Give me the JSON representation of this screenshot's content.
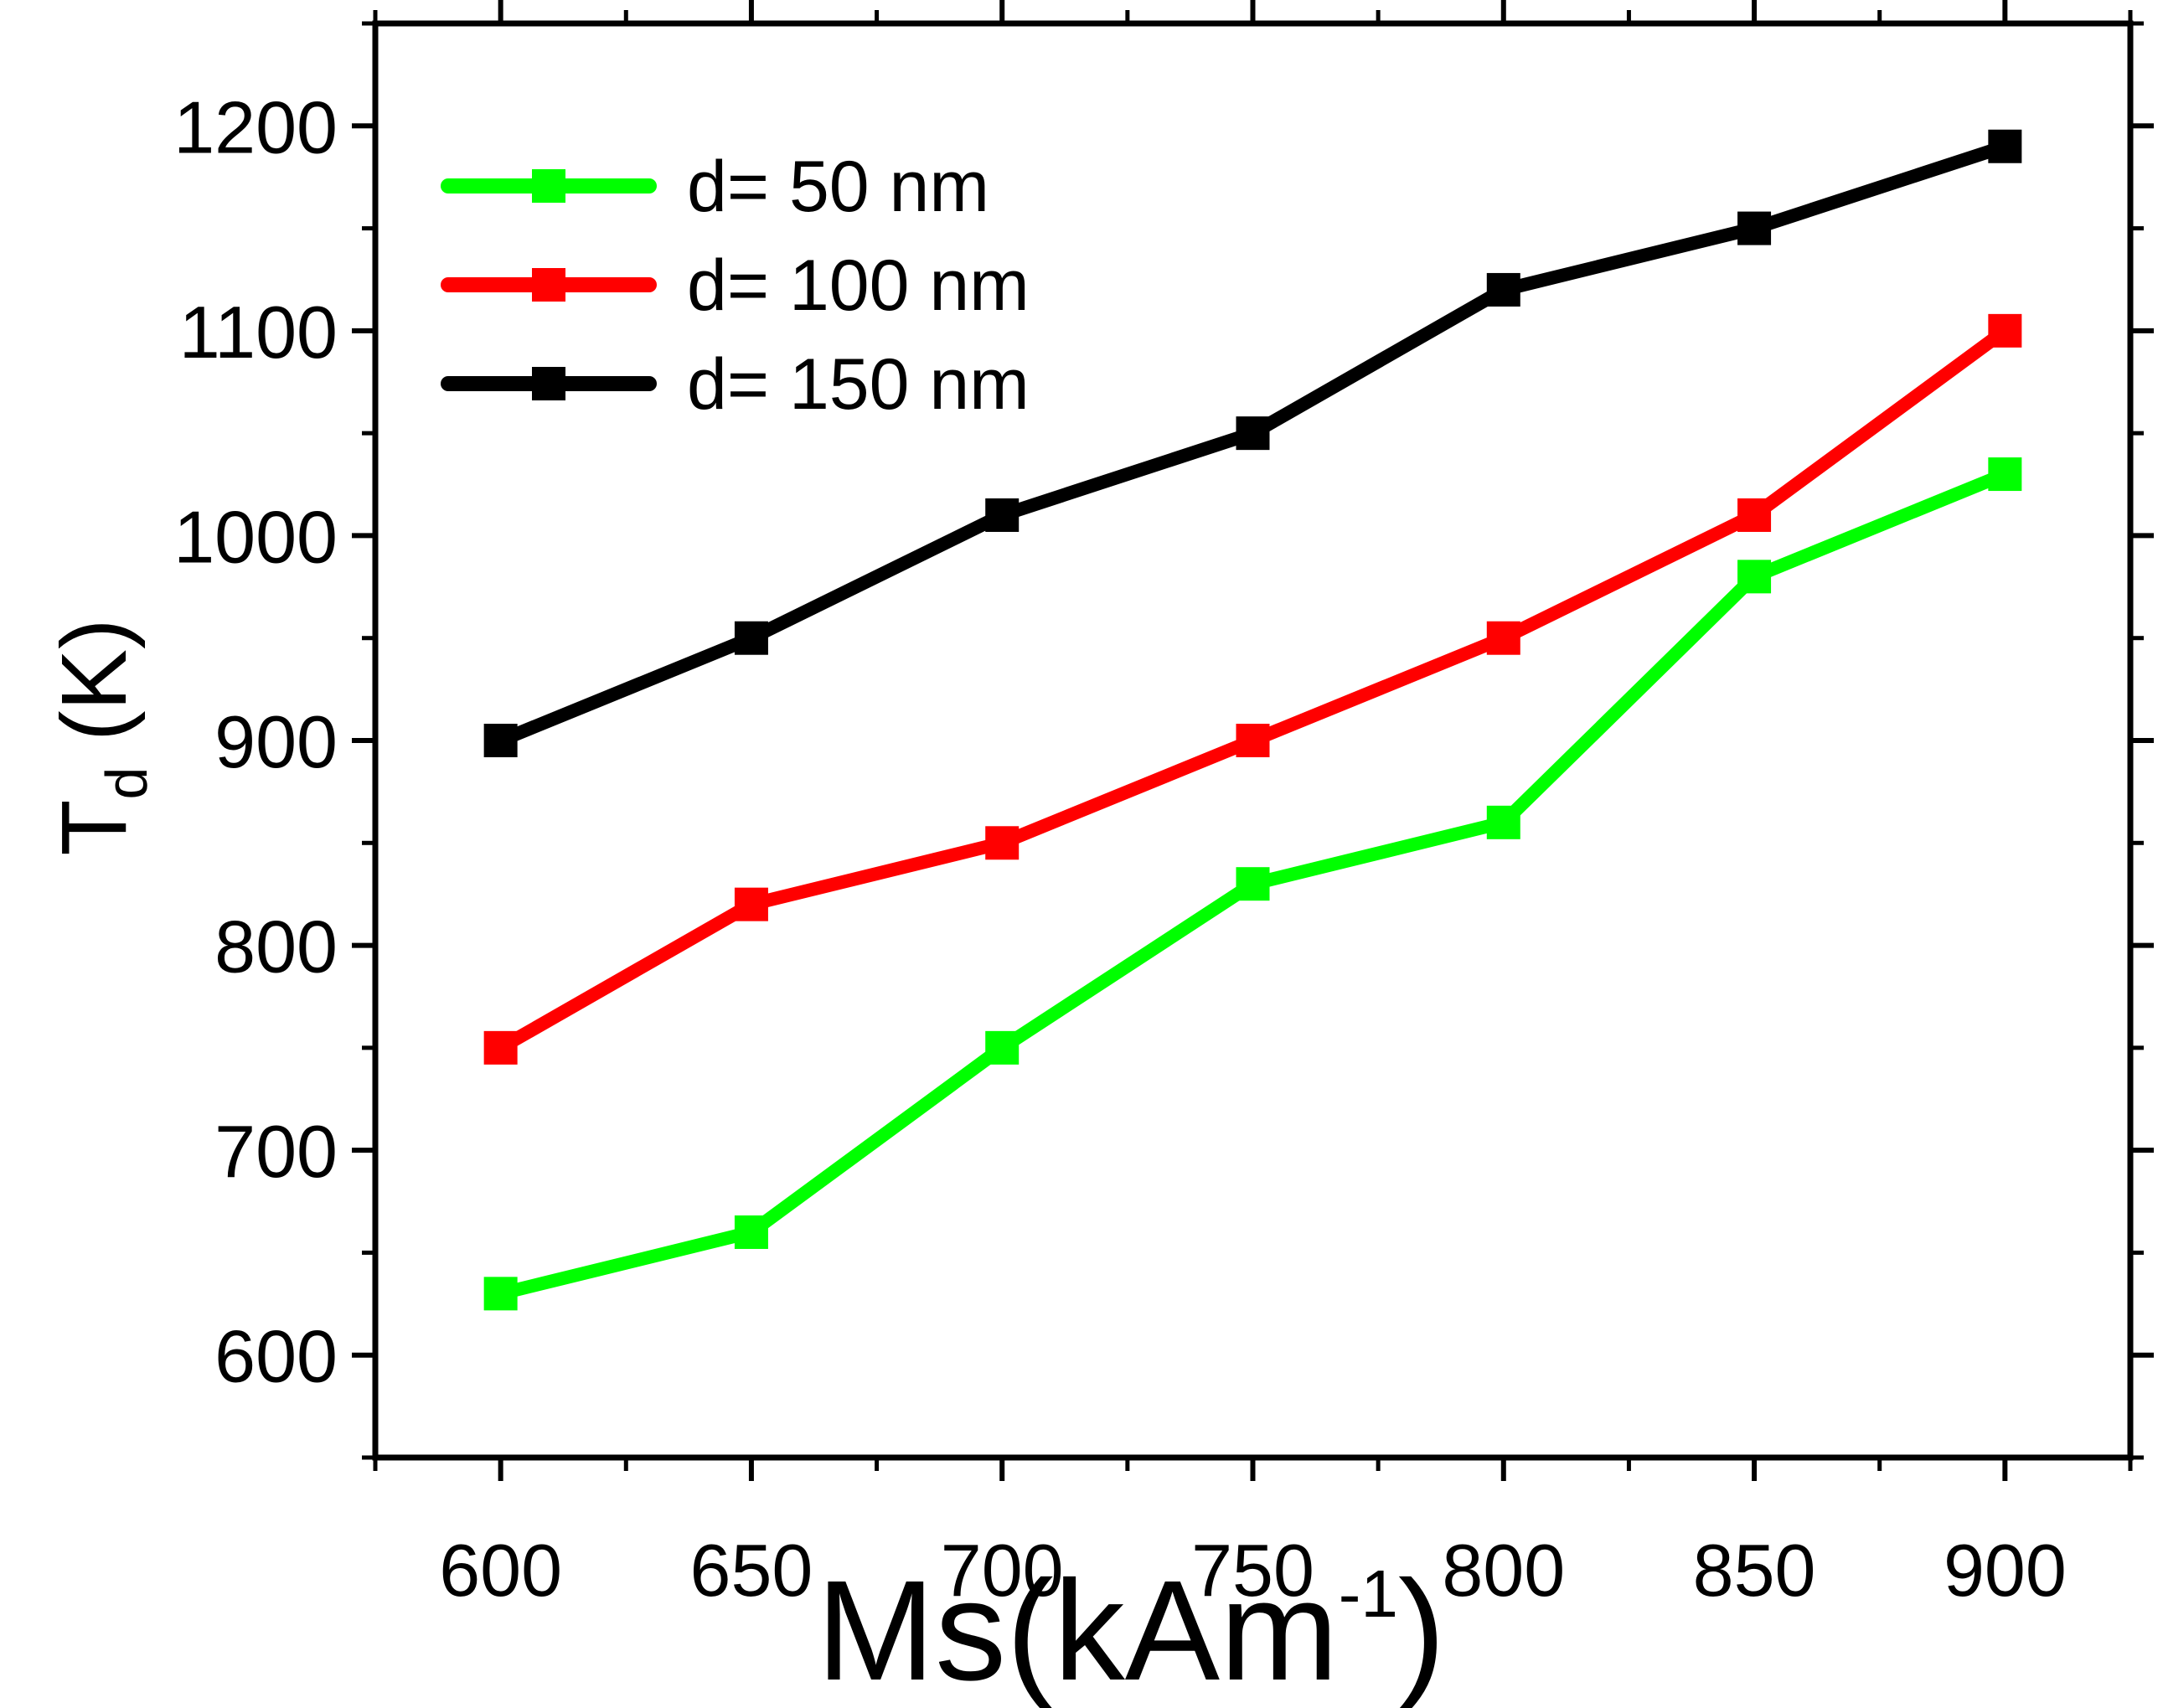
{
  "chart_data": {
    "type": "line",
    "title": "",
    "xlabel": "Ms(kAm",
    "xlabel_superscript": "-1",
    "xlabel_close": ")",
    "ylabel": "T",
    "ylabel_subscript": "d",
    "ylabel_suffix": " (K)",
    "xlim": [
      575,
      925
    ],
    "ylim": [
      550,
      1250
    ],
    "x_ticks": [
      600,
      650,
      700,
      750,
      800,
      850,
      900
    ],
    "x_tick_labels": [
      "600",
      "650",
      "700",
      "750",
      "800",
      "850",
      "900"
    ],
    "y_ticks": [
      600,
      700,
      800,
      900,
      1000,
      1100,
      1200
    ],
    "y_tick_labels": [
      "600",
      "700",
      "800",
      "900",
      "1000",
      "1100",
      "1200"
    ],
    "grid": false,
    "legend_position": "top-left",
    "x": [
      600,
      650,
      700,
      750,
      800,
      850,
      900
    ],
    "series": [
      {
        "name": "d= 50 nm",
        "color": "#00ff00",
        "values": [
          630,
          660,
          750,
          830,
          860,
          980,
          1030
        ]
      },
      {
        "name": "d= 100 nm",
        "color": "#ff0000",
        "values": [
          750,
          820,
          850,
          900,
          950,
          1010,
          1100
        ]
      },
      {
        "name": "d= 150 nm",
        "color": "#000000",
        "values": [
          900,
          950,
          1010,
          1050,
          1120,
          1150,
          1190
        ]
      }
    ]
  }
}
